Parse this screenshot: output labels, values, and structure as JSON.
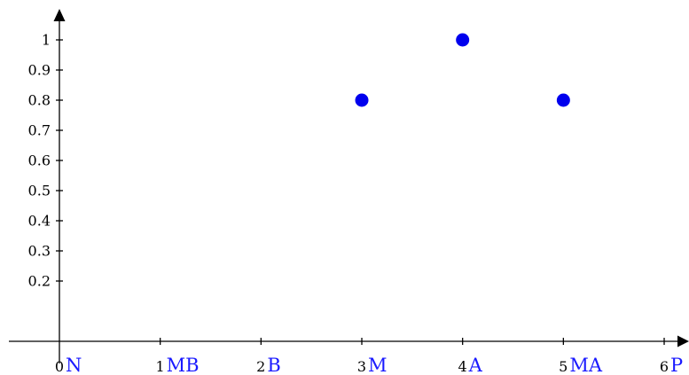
{
  "chart_data": {
    "type": "scatter",
    "title": "",
    "xlabel": "",
    "ylabel": "",
    "xlim": [
      0,
      6
    ],
    "ylim": [
      0,
      1
    ],
    "x_ticks": [
      {
        "value": 0,
        "number": "0",
        "category": "N"
      },
      {
        "value": 1,
        "number": "1",
        "category": "MB"
      },
      {
        "value": 2,
        "number": "2",
        "category": "B"
      },
      {
        "value": 3,
        "number": "3",
        "category": "M"
      },
      {
        "value": 4,
        "number": "4",
        "category": "A"
      },
      {
        "value": 5,
        "number": "5",
        "category": "MA"
      },
      {
        "value": 6,
        "number": "6",
        "category": "P"
      }
    ],
    "y_ticks": [
      {
        "value": 0.2,
        "label": "0.2"
      },
      {
        "value": 0.3,
        "label": "0.3"
      },
      {
        "value": 0.4,
        "label": "0.4"
      },
      {
        "value": 0.5,
        "label": "0.5"
      },
      {
        "value": 0.6,
        "label": "0.6"
      },
      {
        "value": 0.7,
        "label": "0.7"
      },
      {
        "value": 0.8,
        "label": "0.8"
      },
      {
        "value": 0.9,
        "label": "0.9"
      },
      {
        "value": 1,
        "label": "1"
      }
    ],
    "grid": false,
    "legend": "none",
    "series": [
      {
        "color": "#0000ee",
        "points": [
          {
            "x": 3,
            "y": 0.8
          },
          {
            "x": 4,
            "y": 1.0
          },
          {
            "x": 5,
            "y": 0.8
          }
        ]
      }
    ]
  },
  "colors": {
    "category_label": "#1a1aff",
    "point": "#0000ee",
    "axis": "#000000"
  }
}
